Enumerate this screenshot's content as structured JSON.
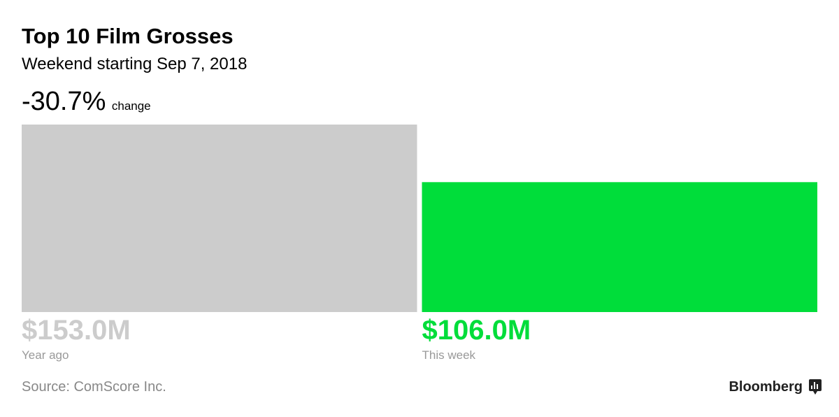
{
  "chart_data": {
    "type": "bar",
    "title": "Top 10 Film Grosses",
    "subtitle": "Weekend starting Sep 7, 2018",
    "change_label": "-30.7%",
    "change_caption": "change",
    "categories": [
      "Year ago",
      "This week"
    ],
    "values": [
      153.0,
      106.0
    ],
    "value_labels": [
      "$153.0M",
      "$106.0M"
    ],
    "colors": [
      "#cccccc",
      "#00dd3a"
    ],
    "source": "Source: ComScore Inc.",
    "brand": "Bloomberg"
  }
}
